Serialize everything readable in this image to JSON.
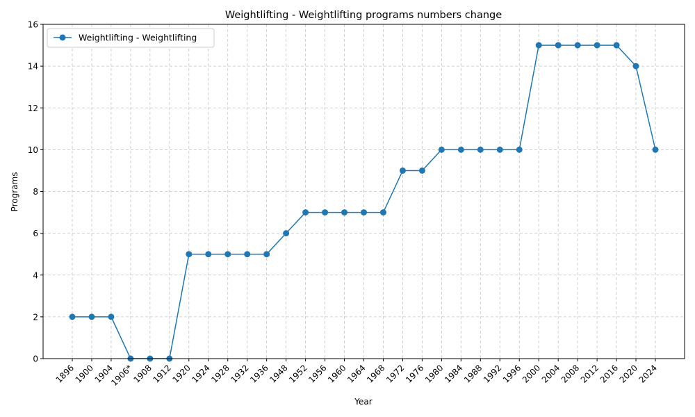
{
  "chart_data": {
    "type": "line",
    "title": "Weightlifting - Weightlifting programs numbers change",
    "xlabel": "Year",
    "ylabel": "Programs",
    "ylim": [
      0,
      16
    ],
    "yticks": [
      0,
      2,
      4,
      6,
      8,
      10,
      12,
      14,
      16
    ],
    "grid": true,
    "legend_position": "top-left",
    "categories": [
      "1896",
      "1900",
      "1904",
      "1906*",
      "1908",
      "1912",
      "1920",
      "1924",
      "1928",
      "1932",
      "1936",
      "1948",
      "1952",
      "1956",
      "1960",
      "1964",
      "1968",
      "1972",
      "1976",
      "1980",
      "1984",
      "1988",
      "1992",
      "1996",
      "2000",
      "2004",
      "2008",
      "2012",
      "2016",
      "2020",
      "2024"
    ],
    "series": [
      {
        "name": "Weightlifting - Weightlifting",
        "color": "#1f77b4",
        "marker": "circle",
        "values": [
          2,
          2,
          2,
          0,
          0,
          0,
          5,
          5,
          5,
          5,
          5,
          6,
          7,
          7,
          7,
          7,
          7,
          9,
          9,
          10,
          10,
          10,
          10,
          10,
          15,
          15,
          15,
          15,
          15,
          14,
          10
        ]
      }
    ]
  }
}
